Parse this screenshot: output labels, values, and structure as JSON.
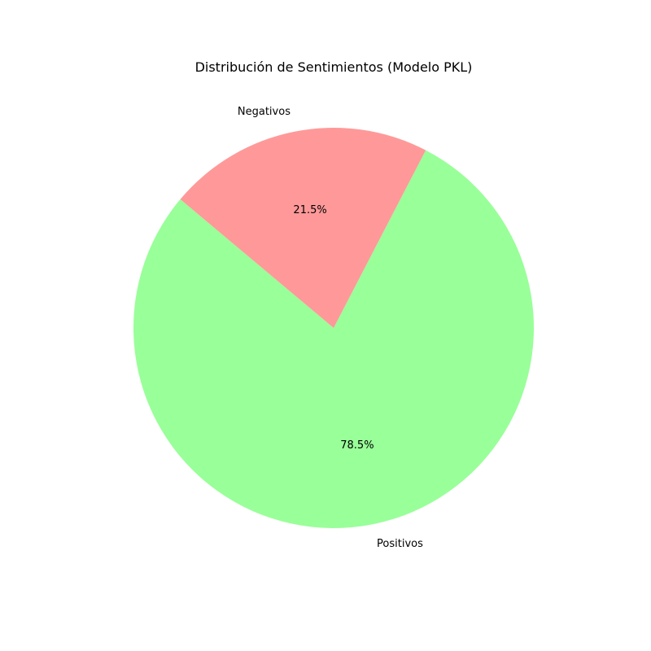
{
  "chart_data": {
    "type": "pie",
    "title": "Distribución de Sentimientos (Modelo PKL)",
    "categories": [
      "Positivos",
      "Negativos"
    ],
    "values": [
      78.5,
      21.5
    ],
    "percent_labels": [
      "78.5%",
      "21.5%"
    ],
    "colors": [
      "#99ff99",
      "#ff9999"
    ],
    "legend": "none"
  }
}
